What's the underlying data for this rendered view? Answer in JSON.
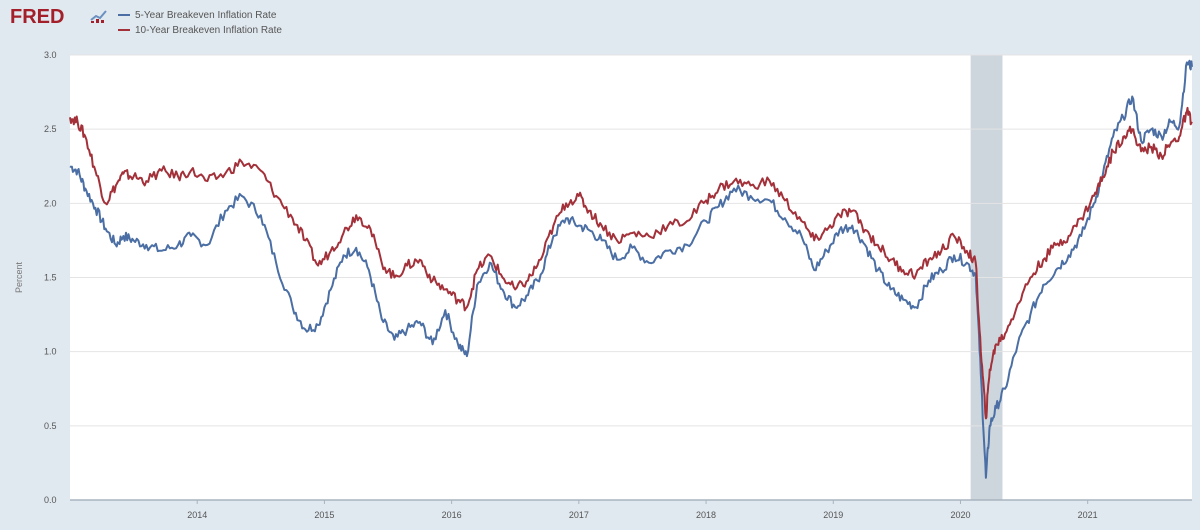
{
  "header": {
    "logo_text": "FRED",
    "logo_icon": "fred-chart-icon"
  },
  "colors": {
    "five_year": "#4b6fa4",
    "ten_year": "#a3313a",
    "plot_bg": "#ffffff",
    "page_bg": "#e1e9f0",
    "recession": "#cdd5dd",
    "grid": "#e4e4e4"
  },
  "chart_data": {
    "type": "line",
    "title": "",
    "xlabel": "",
    "ylabel": "Percent",
    "xlim": [
      2013.0,
      2021.82
    ],
    "ylim": [
      0,
      3.0
    ],
    "yticks": [
      "0.0",
      "0.5",
      "1.0",
      "1.5",
      "2.0",
      "2.5",
      "3.0"
    ],
    "xticks": [
      {
        "label": "2014",
        "x": 2014.0
      },
      {
        "label": "2015",
        "x": 2015.0
      },
      {
        "label": "2016",
        "x": 2016.0
      },
      {
        "label": "2017",
        "x": 2017.0
      },
      {
        "label": "2018",
        "x": 2018.0
      },
      {
        "label": "2019",
        "x": 2019.0
      },
      {
        "label": "2020",
        "x": 2020.0
      },
      {
        "label": "2021",
        "x": 2021.0
      }
    ],
    "grid": true,
    "legend": "top-left",
    "recession_shading": [
      [
        2020.08,
        2020.33
      ]
    ],
    "series": [
      {
        "name": "5-Year Breakeven Inflation Rate",
        "x": [
          2013.0,
          2013.06,
          2013.12,
          2013.2,
          2013.28,
          2013.36,
          2013.42,
          2013.5,
          2013.6,
          2013.72,
          2013.85,
          2013.95,
          2014.08,
          2014.22,
          2014.35,
          2014.5,
          2014.62,
          2014.75,
          2014.85,
          2014.95,
          2015.05,
          2015.15,
          2015.25,
          2015.35,
          2015.45,
          2015.55,
          2015.65,
          2015.75,
          2015.85,
          2015.95,
          2016.05,
          2016.12,
          2016.2,
          2016.3,
          2016.4,
          2016.5,
          2016.6,
          2016.7,
          2016.8,
          2016.9,
          2017.0,
          2017.08,
          2017.18,
          2017.3,
          2017.42,
          2017.55,
          2017.7,
          2017.85,
          2018.0,
          2018.1,
          2018.22,
          2018.35,
          2018.5,
          2018.62,
          2018.75,
          2018.85,
          2018.95,
          2019.05,
          2019.15,
          2019.25,
          2019.35,
          2019.45,
          2019.55,
          2019.65,
          2019.75,
          2019.85,
          2019.95,
          2020.05,
          2020.12,
          2020.16,
          2020.2,
          2020.23,
          2020.28,
          2020.35,
          2020.45,
          2020.55,
          2020.65,
          2020.75,
          2020.85,
          2020.95,
          2021.05,
          2021.12,
          2021.2,
          2021.28,
          2021.35,
          2021.42,
          2021.5,
          2021.58,
          2021.65,
          2021.72,
          2021.78,
          2021.82
        ],
        "values": [
          2.25,
          2.22,
          2.1,
          1.97,
          1.83,
          1.72,
          1.78,
          1.75,
          1.72,
          1.68,
          1.72,
          1.78,
          1.72,
          1.95,
          2.05,
          1.92,
          1.6,
          1.3,
          1.15,
          1.18,
          1.42,
          1.65,
          1.7,
          1.55,
          1.22,
          1.08,
          1.15,
          1.2,
          1.05,
          1.28,
          1.05,
          0.97,
          1.45,
          1.6,
          1.42,
          1.3,
          1.38,
          1.52,
          1.78,
          1.9,
          1.85,
          1.82,
          1.75,
          1.62,
          1.7,
          1.6,
          1.68,
          1.72,
          1.88,
          1.98,
          2.1,
          2.05,
          2.02,
          1.9,
          1.78,
          1.55,
          1.68,
          1.82,
          1.85,
          1.72,
          1.55,
          1.42,
          1.35,
          1.3,
          1.48,
          1.55,
          1.65,
          1.6,
          1.52,
          0.85,
          0.15,
          0.5,
          0.62,
          0.75,
          1.05,
          1.25,
          1.45,
          1.55,
          1.65,
          1.78,
          2.0,
          2.2,
          2.45,
          2.58,
          2.72,
          2.42,
          2.5,
          2.45,
          2.55,
          2.52,
          2.95,
          2.92
        ]
      },
      {
        "name": "10-Year Breakeven Inflation Rate",
        "x": [
          2013.0,
          2013.06,
          2013.12,
          2013.2,
          2013.28,
          2013.36,
          2013.42,
          2013.5,
          2013.6,
          2013.72,
          2013.85,
          2013.95,
          2014.08,
          2014.22,
          2014.35,
          2014.5,
          2014.62,
          2014.75,
          2014.85,
          2014.95,
          2015.05,
          2015.15,
          2015.25,
          2015.35,
          2015.45,
          2015.55,
          2015.65,
          2015.75,
          2015.85,
          2015.95,
          2016.05,
          2016.12,
          2016.2,
          2016.3,
          2016.4,
          2016.5,
          2016.6,
          2016.7,
          2016.8,
          2016.9,
          2017.0,
          2017.08,
          2017.18,
          2017.3,
          2017.42,
          2017.55,
          2017.7,
          2017.85,
          2018.0,
          2018.1,
          2018.22,
          2018.35,
          2018.5,
          2018.62,
          2018.75,
          2018.85,
          2018.95,
          2019.05,
          2019.15,
          2019.25,
          2019.35,
          2019.45,
          2019.55,
          2019.65,
          2019.75,
          2019.85,
          2019.95,
          2020.05,
          2020.12,
          2020.16,
          2020.2,
          2020.23,
          2020.28,
          2020.35,
          2020.45,
          2020.55,
          2020.65,
          2020.75,
          2020.85,
          2020.95,
          2021.05,
          2021.12,
          2021.2,
          2021.28,
          2021.35,
          2021.42,
          2021.5,
          2021.58,
          2021.65,
          2021.72,
          2021.78,
          2021.82
        ],
        "values": [
          2.58,
          2.55,
          2.45,
          2.22,
          2.0,
          2.12,
          2.2,
          2.18,
          2.15,
          2.22,
          2.18,
          2.22,
          2.15,
          2.2,
          2.28,
          2.22,
          2.05,
          1.9,
          1.75,
          1.58,
          1.68,
          1.8,
          1.92,
          1.85,
          1.6,
          1.5,
          1.58,
          1.62,
          1.48,
          1.42,
          1.35,
          1.3,
          1.55,
          1.65,
          1.5,
          1.42,
          1.48,
          1.62,
          1.85,
          2.0,
          2.05,
          1.95,
          1.85,
          1.75,
          1.8,
          1.78,
          1.85,
          1.88,
          2.02,
          2.1,
          2.15,
          2.12,
          2.15,
          2.02,
          1.88,
          1.75,
          1.82,
          1.92,
          1.95,
          1.82,
          1.72,
          1.62,
          1.55,
          1.52,
          1.62,
          1.68,
          1.78,
          1.68,
          1.6,
          1.0,
          0.55,
          0.88,
          1.05,
          1.12,
          1.32,
          1.5,
          1.62,
          1.72,
          1.78,
          1.9,
          2.05,
          2.18,
          2.35,
          2.45,
          2.5,
          2.35,
          2.38,
          2.32,
          2.4,
          2.45,
          2.62,
          2.55
        ]
      }
    ]
  }
}
